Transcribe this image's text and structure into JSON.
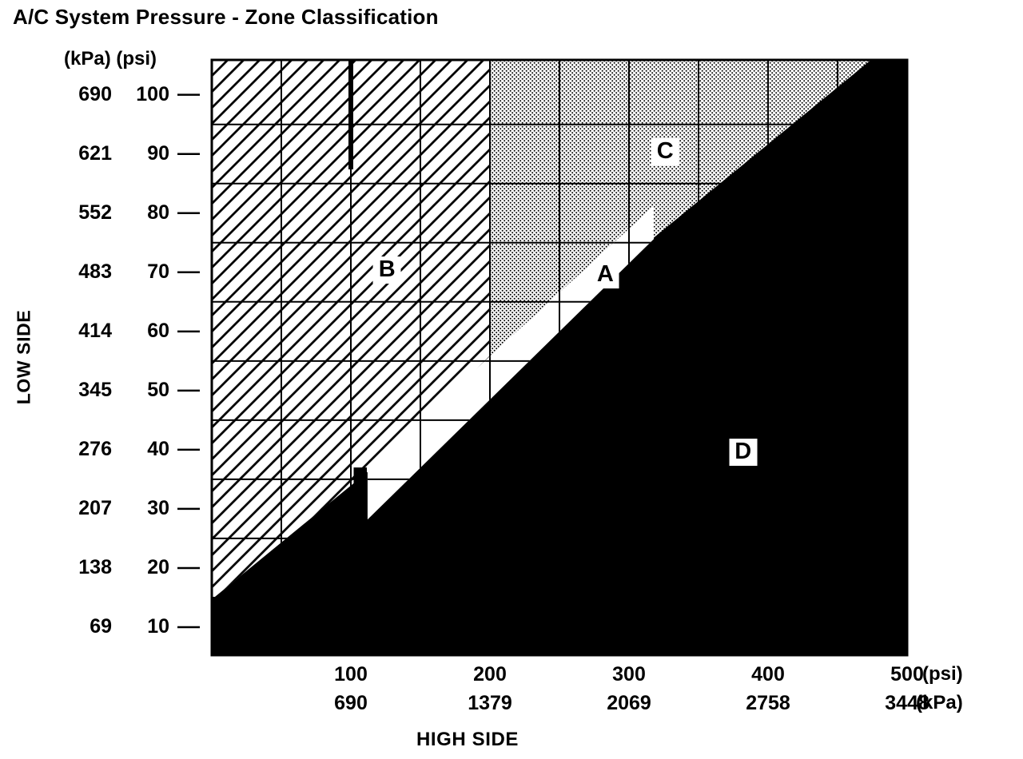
{
  "page": {
    "title": "A/C System Pressure - Zone Classification"
  },
  "chart_data": {
    "type": "area",
    "title": "A/C System Pressure - Zone Classification",
    "x_axis": {
      "label": "HIGH SIDE",
      "units": [
        "(psi)",
        "(kPa)"
      ],
      "psi_ticks": [
        100,
        200,
        300,
        400,
        500
      ],
      "kpa_ticks": [
        690,
        1379,
        2069,
        2758,
        3448
      ],
      "range_psi": [
        0,
        500
      ]
    },
    "y_axis": {
      "label": "LOW SIDE",
      "units_header": "(kPa) (psi)",
      "rows": [
        {
          "kpa": 690,
          "psi": 100
        },
        {
          "kpa": 621,
          "psi": 90
        },
        {
          "kpa": 552,
          "psi": 80
        },
        {
          "kpa": 483,
          "psi": 70
        },
        {
          "kpa": 414,
          "psi": 60
        },
        {
          "kpa": 345,
          "psi": 50
        },
        {
          "kpa": 276,
          "psi": 40
        },
        {
          "kpa": 207,
          "psi": 30
        },
        {
          "kpa": 138,
          "psi": 20
        },
        {
          "kpa": 69,
          "psi": 10
        }
      ],
      "range_psi": [
        5.27,
        105.9
      ]
    },
    "grid": {
      "vertical_psi": [
        50,
        100,
        150,
        200,
        250,
        300,
        350,
        400,
        450
      ],
      "horizontal_psi": [
        15,
        25,
        35,
        45,
        55,
        65,
        75,
        85,
        95
      ]
    },
    "zones": [
      {
        "id": "B",
        "label": "B",
        "pattern": "hatch",
        "label_pos": {
          "high": 126,
          "low": 70.4
        },
        "points": [
          [
            0,
            105.9
          ],
          [
            200,
            105.9
          ],
          [
            200,
            55.8
          ],
          [
            112,
            36.6
          ],
          [
            112,
            36.2
          ],
          [
            0,
            14.7
          ]
        ]
      },
      {
        "id": "C",
        "label": "C",
        "pattern": "dots",
        "label_pos": {
          "high": 326,
          "low": 90.3
        },
        "points": [
          [
            200,
            105.9
          ],
          [
            474,
            105.9
          ],
          [
            317.8,
            75.6
          ],
          [
            317.8,
            81.2
          ],
          [
            200,
            55.8
          ]
        ]
      },
      {
        "id": "D",
        "label": "D",
        "pattern": "solid-black",
        "label_pos": {
          "high": 382,
          "low": 39.6
        },
        "points": [
          [
            0,
            14.7
          ],
          [
            474,
            105.9
          ],
          [
            500,
            105.9
          ],
          [
            500,
            5.27
          ],
          [
            0,
            5.27
          ]
        ]
      },
      {
        "id": "D-step",
        "label": "",
        "pattern": "solid-black",
        "points": [
          [
            102,
            37
          ],
          [
            111.5,
            37
          ],
          [
            111.5,
            27.6
          ],
          [
            102,
            27.6
          ]
        ]
      },
      {
        "id": "A",
        "label": "A",
        "pattern": "white",
        "label_pos": {
          "high": 283,
          "low": 69.5
        },
        "points": [
          [
            112,
            36.6
          ],
          [
            317.8,
            81.2
          ],
          [
            317.8,
            75.6
          ],
          [
            112,
            28.2
          ]
        ]
      }
    ],
    "extras": {
      "thick_segment": {
        "high": 100,
        "low_from": 105.9,
        "low_to": 87.4
      }
    },
    "colors": {
      "ink": "#000000",
      "background": "#ffffff"
    }
  }
}
